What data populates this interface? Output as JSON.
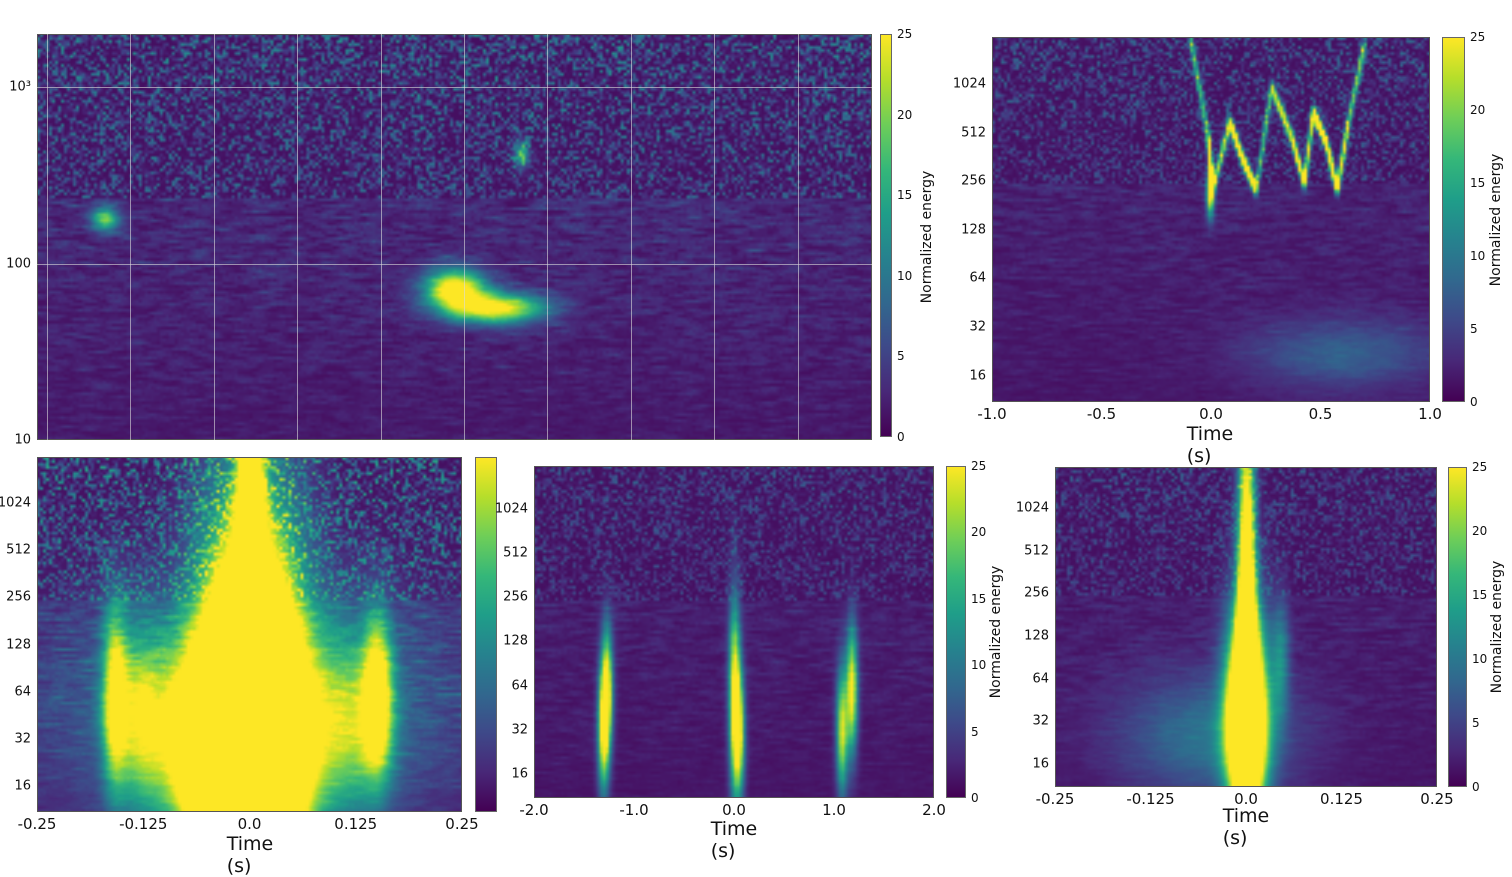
{
  "chart_data": [
    {
      "type": "heatmap",
      "id": "p1",
      "title": "",
      "xlabel": "",
      "ylabel": "",
      "yscale": "log",
      "ylim": [
        10,
        2000
      ],
      "xlim": [
        0,
        1
      ],
      "yticks": [
        {
          "v": 1000,
          "label": "10³"
        },
        {
          "v": 100,
          "label": "100"
        },
        {
          "v": 10,
          "label": "10"
        }
      ],
      "xticks": [],
      "colorbar": {
        "label": "Normalized energy",
        "ticks": [
          "0",
          "5",
          "10",
          "15",
          "20",
          "25"
        ],
        "range": [
          0,
          25
        ]
      },
      "noise": 1.0,
      "features": [
        {
          "t": 0.5,
          "f": 72,
          "e": 26,
          "st": 0.025,
          "sf": 0.08
        },
        {
          "t": 0.55,
          "f": 56,
          "e": 24,
          "st": 0.04,
          "sf": 0.06
        },
        {
          "t": 0.08,
          "f": 180,
          "e": 16,
          "st": 0.012,
          "sf": 0.05
        },
        {
          "t": 0.58,
          "f": 420,
          "e": 14,
          "st": 0.006,
          "sf": 0.05
        }
      ]
    },
    {
      "type": "heatmap",
      "id": "p2",
      "xlabel": "Time (s)",
      "yscale": "log",
      "ylim": [
        11,
        2000
      ],
      "xlim": [
        -1,
        1
      ],
      "yticks": [
        {
          "v": 1024,
          "label": "1024"
        },
        {
          "v": 512,
          "label": "512"
        },
        {
          "v": 256,
          "label": "256"
        },
        {
          "v": 128,
          "label": "128"
        },
        {
          "v": 64,
          "label": "64"
        },
        {
          "v": 32,
          "label": "32"
        },
        {
          "v": 16,
          "label": "16"
        }
      ],
      "xticks": [
        {
          "v": -1,
          "label": "-1.0"
        },
        {
          "v": -0.5,
          "label": "-0.5"
        },
        {
          "v": 0,
          "label": "0.0"
        },
        {
          "v": 0.5,
          "label": "0.5"
        },
        {
          "v": 1,
          "label": "1.0"
        }
      ],
      "colorbar": {
        "label": "Normalized energy",
        "ticks": [
          "0",
          "5",
          "10",
          "15",
          "20",
          "25"
        ],
        "range": [
          0,
          25
        ]
      },
      "noise": 0.7,
      "features": [
        {
          "t": -0.01,
          "f": 220,
          "e": 26,
          "st": 0.012,
          "sf": 0.1
        },
        {
          "t": 0.6,
          "f": 22,
          "e": 6,
          "st": 0.3,
          "sf": 0.15
        }
      ],
      "tracks": [
        {
          "e": 12,
          "pts": [
            [
              -0.1,
              2000
            ],
            [
              -0.02,
              500
            ],
            [
              0,
              230
            ],
            [
              0.08,
              600
            ],
            [
              0.14,
              350
            ],
            [
              0.2,
              230
            ],
            [
              0.27,
              1000
            ],
            [
              0.36,
              500
            ],
            [
              0.42,
              250
            ],
            [
              0.46,
              700
            ],
            [
              0.52,
              450
            ],
            [
              0.57,
              230
            ],
            [
              0.62,
              600
            ],
            [
              0.7,
              2000
            ]
          ]
        }
      ]
    },
    {
      "type": "heatmap",
      "id": "p3",
      "xlabel": "Time (s)",
      "yscale": "log",
      "ylim": [
        11,
        2000
      ],
      "xlim": [
        -0.25,
        0.25
      ],
      "yticks": [
        {
          "v": 1024,
          "label": "1024"
        },
        {
          "v": 512,
          "label": "512"
        },
        {
          "v": 256,
          "label": "256"
        },
        {
          "v": 128,
          "label": "128"
        },
        {
          "v": 64,
          "label": "64"
        },
        {
          "v": 32,
          "label": "32"
        },
        {
          "v": 16,
          "label": "16"
        }
      ],
      "xticks": [
        {
          "v": -0.25,
          "label": "-0.25"
        },
        {
          "v": -0.125,
          "label": "-0.125"
        },
        {
          "v": 0,
          "label": "0.0"
        },
        {
          "v": 0.125,
          "label": "0.125"
        },
        {
          "v": 0.25,
          "label": "0.25"
        }
      ],
      "colorbar": {
        "label": "",
        "ticks": [],
        "range": [
          0,
          25
        ]
      },
      "noise": 1.2,
      "features": [
        {
          "t": 0,
          "f": 40,
          "e": 60,
          "st": 0.04,
          "sf": 0.9
        },
        {
          "t": 0,
          "f": 300,
          "e": 40,
          "st": 0.01,
          "sf": 1.2
        },
        {
          "t": -0.02,
          "f": 28,
          "e": 40,
          "st": 0.05,
          "sf": 0.4
        },
        {
          "t": 0.15,
          "f": 60,
          "e": 22,
          "st": 0.012,
          "sf": 0.35
        },
        {
          "t": -0.16,
          "f": 60,
          "e": 20,
          "st": 0.01,
          "sf": 0.4
        },
        {
          "t": -0.13,
          "f": 45,
          "e": 14,
          "st": 0.02,
          "sf": 0.4
        },
        {
          "t": 0.12,
          "f": 40,
          "e": 12,
          "st": 0.03,
          "sf": 0.4
        },
        {
          "t": 0,
          "f": 45,
          "e": 10,
          "st": 0.15,
          "sf": 0.5
        }
      ]
    },
    {
      "type": "heatmap",
      "id": "p4",
      "xlabel": "Time (s)",
      "yscale": "log",
      "ylim": [
        11,
        2000
      ],
      "xlim": [
        -2,
        2
      ],
      "yticks": [
        {
          "v": 1024,
          "label": "1024"
        },
        {
          "v": 512,
          "label": "512"
        },
        {
          "v": 256,
          "label": "256"
        },
        {
          "v": 128,
          "label": "128"
        },
        {
          "v": 64,
          "label": "64"
        },
        {
          "v": 32,
          "label": "32"
        },
        {
          "v": 16,
          "label": "16"
        }
      ],
      "xticks": [
        {
          "v": -2,
          "label": "-2.0"
        },
        {
          "v": -1,
          "label": "-1.0"
        },
        {
          "v": 0,
          "label": "0.0"
        },
        {
          "v": 1,
          "label": "1.0"
        },
        {
          "v": 2,
          "label": "2.0"
        }
      ],
      "colorbar": {
        "label": "Normalized energy",
        "ticks": [
          "0",
          "5",
          "10",
          "15",
          "20",
          "25"
        ],
        "range": [
          0,
          25
        ]
      },
      "noise": 0.6,
      "features": [
        {
          "t": -1.28,
          "f": 60,
          "e": 24,
          "st": 0.04,
          "sf": 0.3
        },
        {
          "t": -1.32,
          "f": 32,
          "e": 22,
          "st": 0.04,
          "sf": 0.3
        },
        {
          "t": 0,
          "f": 55,
          "e": 25,
          "st": 0.04,
          "sf": 0.45
        },
        {
          "t": 0.05,
          "f": 30,
          "e": 20,
          "st": 0.04,
          "sf": 0.3
        },
        {
          "t": 1.18,
          "f": 60,
          "e": 24,
          "st": 0.04,
          "sf": 0.3
        },
        {
          "t": 1.08,
          "f": 32,
          "e": 22,
          "st": 0.04,
          "sf": 0.3
        }
      ]
    },
    {
      "type": "heatmap",
      "id": "p5",
      "xlabel": "Time (s)",
      "yscale": "log",
      "ylim": [
        11,
        2000
      ],
      "xlim": [
        -0.25,
        0.25
      ],
      "yticks": [
        {
          "v": 1024,
          "label": "1024"
        },
        {
          "v": 512,
          "label": "512"
        },
        {
          "v": 256,
          "label": "256"
        },
        {
          "v": 128,
          "label": "128"
        },
        {
          "v": 64,
          "label": "64"
        },
        {
          "v": 32,
          "label": "32"
        },
        {
          "v": 16,
          "label": "16"
        }
      ],
      "xticks": [
        {
          "v": -0.25,
          "label": "-0.25"
        },
        {
          "v": -0.125,
          "label": "-0.125"
        },
        {
          "v": 0,
          "label": "0.0"
        },
        {
          "v": 0.125,
          "label": "0.125"
        },
        {
          "v": 0.25,
          "label": "0.25"
        }
      ],
      "colorbar": {
        "label": "Normalized energy",
        "ticks": [
          "0",
          "5",
          "10",
          "15",
          "20",
          "25"
        ],
        "range": [
          0,
          25
        ]
      },
      "noise": 0.6,
      "features": [
        {
          "t": 0,
          "f": 35,
          "e": 50,
          "st": 0.018,
          "sf": 0.5
        },
        {
          "t": 0,
          "f": 120,
          "e": 40,
          "st": 0.008,
          "sf": 1.1
        },
        {
          "t": 0.045,
          "f": 90,
          "e": 9,
          "st": 0.008,
          "sf": 0.3
        },
        {
          "t": -0.05,
          "f": 25,
          "e": 8,
          "st": 0.08,
          "sf": 0.3
        }
      ]
    }
  ]
}
